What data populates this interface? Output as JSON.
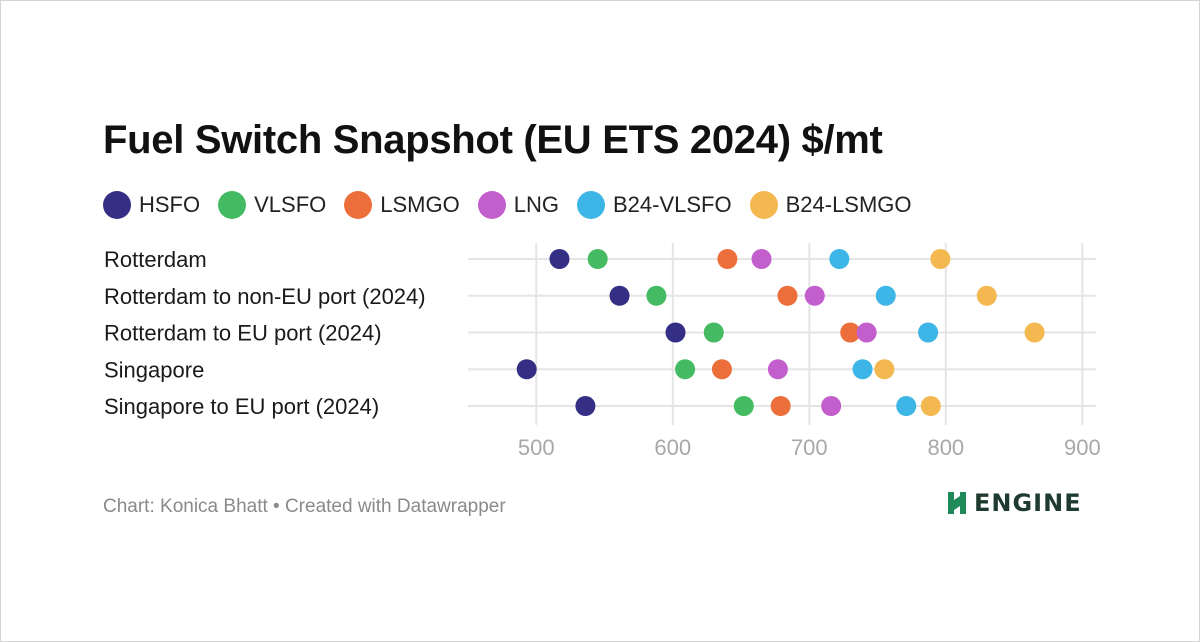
{
  "title": "Fuel Switch Snapshot (EU ETS 2024) $/mt",
  "footer": "Chart: Konica Bhatt • Created with Datawrapper",
  "logo": {
    "text": "ENGINE",
    "mark_color": "#1e8a5a"
  },
  "chart_data": {
    "type": "scatter",
    "title": "Fuel Switch Snapshot (EU ETS 2024) $/mt",
    "xlabel": "",
    "ylabel": "",
    "xlim": [
      450,
      910
    ],
    "xticks": [
      500,
      600,
      700,
      800,
      900
    ],
    "grid": true,
    "legend_position": "top",
    "categories": [
      "Rotterdam",
      "Rotterdam to non-EU port (2024)",
      "Rotterdam to EU port (2024)",
      "Singapore",
      "Singapore to EU port (2024)"
    ],
    "series": [
      {
        "name": "HSFO",
        "color": "#342f85",
        "values": [
          517,
          561,
          602,
          493,
          536
        ]
      },
      {
        "name": "VLSFO",
        "color": "#44bb62",
        "values": [
          545,
          588,
          630,
          609,
          652
        ]
      },
      {
        "name": "LSMGO",
        "color": "#ec6f3b",
        "values": [
          640,
          684,
          730,
          636,
          679
        ]
      },
      {
        "name": "LNG",
        "color": "#c35fcc",
        "values": [
          665,
          704,
          742,
          677,
          716
        ]
      },
      {
        "name": "B24-VLSFO",
        "color": "#3db5e6",
        "values": [
          722,
          756,
          787,
          739,
          771
        ]
      },
      {
        "name": "B24-LSMGO",
        "color": "#f4b850",
        "values": [
          796,
          830,
          865,
          755,
          789
        ]
      }
    ]
  }
}
